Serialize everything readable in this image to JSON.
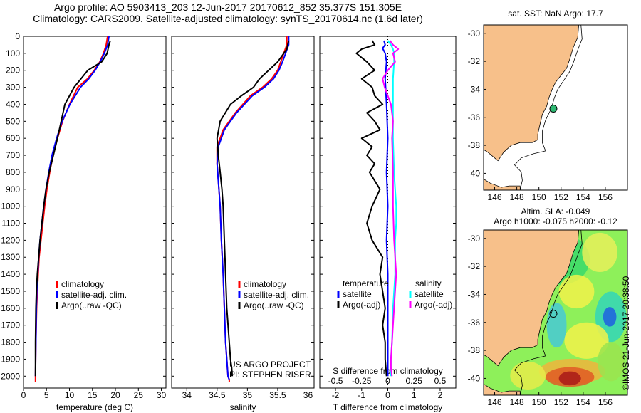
{
  "header": {
    "line1": "Argo profile: AO 5903413_203 12-Jun-2017 20170612_852 35.377S 151.305E",
    "line2": "Climatology: CARS2009. Satellite-adjusted climatology: synTS_20170614.nc (1.6d later)"
  },
  "colors": {
    "climatology": "#ff0000",
    "satellite": "#0000ff",
    "argo": "#000000",
    "satellite_salinity": "#00ffff",
    "argo_salinity": "#ff00ff",
    "land": "#f7c08a",
    "ocean": "#ffffff"
  },
  "chart_data": [
    {
      "type": "line",
      "panel": "temperature",
      "xlabel": "temperature (deg C)",
      "ylabel": "",
      "xlim": [
        0,
        31
      ],
      "ylim": [
        2070,
        0
      ],
      "xticks": [
        "0",
        "5",
        "10",
        "15",
        "20",
        "25",
        "30"
      ],
      "xtick_values": [
        0,
        5,
        10,
        15,
        20,
        25,
        30
      ],
      "yticks": [
        "0",
        "100",
        "200",
        "300",
        "400",
        "500",
        "600",
        "700",
        "800",
        "900",
        "1000",
        "1100",
        "1200",
        "1300",
        "1400",
        "1500",
        "1600",
        "1700",
        "1800",
        "1900",
        "2000"
      ],
      "ytick_values": [
        0,
        100,
        200,
        300,
        400,
        500,
        600,
        700,
        800,
        900,
        1000,
        1100,
        1200,
        1300,
        1400,
        1500,
        1600,
        1700,
        1800,
        1900,
        2000
      ],
      "legend": [
        "climatology",
        "satellite-adj. clim.",
        "Argo(..raw -QC)"
      ],
      "series": [
        {
          "name": "climatology",
          "color_key": "climatology",
          "width": 2,
          "x": [
            18.3,
            18.0,
            17.4,
            16.6,
            15.4,
            13.9,
            11.8,
            10.0,
            8.5,
            7.4,
            6.4,
            5.7,
            5.1,
            4.6,
            4.2,
            3.8,
            3.4,
            3.2,
            3.0,
            2.85,
            2.7,
            2.6,
            2.6
          ],
          "y": [
            0,
            50,
            100,
            150,
            200,
            250,
            300,
            400,
            500,
            600,
            700,
            800,
            900,
            1000,
            1100,
            1200,
            1300,
            1400,
            1500,
            1600,
            1800,
            2000,
            2035
          ]
        },
        {
          "name": "satellite-adj. clim.",
          "color_key": "satellite",
          "width": 2,
          "x": [
            18.6,
            18.3,
            17.6,
            16.7,
            15.6,
            14.2,
            12.4,
            10.1,
            8.4,
            7.2,
            6.2,
            5.5,
            4.9,
            4.4,
            4.0,
            3.6,
            3.3,
            3.1,
            2.9,
            2.8,
            2.7,
            2.6
          ],
          "y": [
            0,
            50,
            100,
            150,
            200,
            250,
            300,
            400,
            500,
            600,
            700,
            800,
            900,
            1000,
            1100,
            1200,
            1300,
            1400,
            1500,
            1600,
            1800,
            2000
          ]
        },
        {
          "name": "Argo(..raw -QC)",
          "color_key": "argo",
          "width": 2,
          "x": [
            18.9,
            18.6,
            18.2,
            17.0,
            14.0,
            12.5,
            11.0,
            9.0,
            8.2,
            7.4,
            6.5,
            5.6,
            4.9,
            4.4,
            4.0,
            3.6,
            3.3,
            3.0,
            2.8,
            2.7,
            2.6,
            2.6
          ],
          "y": [
            25,
            50,
            100,
            150,
            200,
            250,
            300,
            400,
            500,
            600,
            700,
            800,
            900,
            1000,
            1100,
            1200,
            1300,
            1400,
            1500,
            1600,
            1800,
            2000
          ]
        }
      ]
    },
    {
      "type": "line",
      "panel": "salinity",
      "xlabel": "salinity",
      "xlim": [
        33.75,
        36.1
      ],
      "ylim": [
        2070,
        0
      ],
      "xticks": [
        "34",
        "34.5",
        "35",
        "35.5",
        "36"
      ],
      "xtick_values": [
        34,
        34.5,
        35,
        35.5,
        36
      ],
      "legend": [
        "climatology",
        "satellite-adj. clim.",
        "Argo(..raw -QC)"
      ],
      "annotation": [
        "US ARGO PROJECT",
        "PI: STEPHEN RISER"
      ],
      "series": [
        {
          "name": "climatology",
          "color_key": "climatology",
          "width": 2,
          "x": [
            35.65,
            35.65,
            35.6,
            35.55,
            35.5,
            35.4,
            35.25,
            35.05,
            34.8,
            34.6,
            34.5,
            34.5,
            34.52,
            34.55,
            34.57,
            34.6,
            34.62,
            34.64,
            34.66,
            34.68,
            34.7,
            34.7
          ],
          "y": [
            0,
            50,
            100,
            150,
            200,
            250,
            300,
            350,
            450,
            550,
            650,
            750,
            850,
            1000,
            1200,
            1400,
            1600,
            1800,
            1900,
            2000,
            2020,
            2035
          ]
        },
        {
          "name": "satellite-adj. clim.",
          "color_key": "satellite",
          "width": 2,
          "x": [
            35.68,
            35.68,
            35.63,
            35.58,
            35.52,
            35.43,
            35.28,
            35.08,
            34.82,
            34.62,
            34.52,
            34.5,
            34.52,
            34.55,
            34.57,
            34.6,
            34.62,
            34.64,
            34.66,
            34.68,
            34.7
          ],
          "y": [
            0,
            50,
            100,
            150,
            200,
            250,
            300,
            350,
            450,
            550,
            650,
            750,
            850,
            1000,
            1200,
            1400,
            1600,
            1800,
            1900,
            2000,
            2020
          ]
        },
        {
          "name": "Argo(..raw -QC)",
          "color_key": "argo",
          "width": 2,
          "x": [
            35.68,
            35.65,
            35.5,
            35.35,
            35.2,
            35.1,
            34.9,
            34.72,
            34.55,
            34.5,
            34.52,
            34.55,
            34.58,
            34.6,
            34.62,
            34.64,
            34.66,
            34.7,
            34.72,
            34.74,
            34.75
          ],
          "y": [
            25,
            75,
            150,
            200,
            250,
            300,
            350,
            400,
            500,
            600,
            700,
            800,
            900,
            1000,
            1200,
            1400,
            1600,
            1800,
            1900,
            1950,
            2000
          ]
        }
      ]
    },
    {
      "type": "line",
      "panel": "difference",
      "xlabel": "T difference from climatology",
      "xlabel_top": "S difference from climatology",
      "xlim": [
        -2.6,
        2.6
      ],
      "ylim": [
        2070,
        0
      ],
      "xticks": [
        "-2",
        "-1",
        "0",
        "1",
        "2"
      ],
      "xtick_values": [
        -2,
        -1,
        0,
        1,
        2
      ],
      "sticks": [
        "-0.5",
        "-0.25",
        "0",
        "0.25",
        "0.5"
      ],
      "stick_values": [
        -0.5,
        -0.25,
        0,
        0.25,
        0.5
      ],
      "s_scale": 4,
      "legend": [
        {
          "heading": "temperature",
          "items": [
            "satellite",
            "Argo(-adj)"
          ]
        },
        {
          "heading": "salinity",
          "items": [
            "satellite",
            "Argo(-adj)"
          ]
        }
      ],
      "series": [
        {
          "name": "satellite",
          "quantity": "temperature",
          "color_key": "satellite",
          "width": 2,
          "x": [
            -0.15,
            -0.1,
            -0.2,
            -0.1,
            -0.05,
            -0.1,
            -0.05,
            0.0,
            -0.05,
            0.0,
            -0.05,
            0.0,
            0.0,
            0.0,
            0.0,
            0.0,
            0.0
          ],
          "y": [
            25,
            50,
            70,
            100,
            150,
            250,
            400,
            600,
            800,
            1000,
            1200,
            1400,
            1600,
            1700,
            1800,
            1900,
            2000
          ]
        },
        {
          "name": "Argo(-adj)",
          "quantity": "temperature",
          "color_key": "argo",
          "width": 2,
          "x": [
            -0.6,
            -0.5,
            -1.0,
            -1.2,
            -0.8,
            -0.5,
            -1.0,
            -0.6,
            -0.5,
            -0.2,
            -0.8,
            -0.5,
            -0.3,
            -1.0,
            -0.6,
            -0.8,
            -0.5,
            -0.7,
            -0.3,
            -0.6,
            -0.8,
            -0.6,
            -0.2,
            -0.3,
            -0.2,
            -0.1,
            -0.2,
            -0.1,
            -0.1,
            -0.05
          ],
          "y": [
            25,
            50,
            75,
            100,
            150,
            200,
            250,
            300,
            350,
            400,
            450,
            500,
            550,
            600,
            650,
            700,
            750,
            800,
            900,
            1000,
            1100,
            1200,
            1300,
            1400,
            1500,
            1600,
            1700,
            1800,
            1900,
            2000
          ]
        },
        {
          "name": "satellite",
          "quantity": "salinity",
          "color_key": "satellite_salinity",
          "width": 2,
          "x": [
            0.0,
            0.03,
            0.05,
            0.06,
            0.06,
            0.05,
            0.05,
            0.05,
            0.06,
            0.07,
            0.08,
            0.08,
            0.07,
            0.07,
            0.07,
            0.06,
            0.05,
            0.04,
            0.03,
            0.03
          ],
          "y": [
            25,
            50,
            75,
            100,
            150,
            250,
            400,
            600,
            800,
            900,
            1000,
            1100,
            1200,
            1300,
            1400,
            1500,
            1600,
            1800,
            1900,
            2000
          ]
        },
        {
          "name": "Argo(-adj)",
          "quantity": "salinity",
          "color_key": "argo_salinity",
          "width": 2,
          "x": [
            0.02,
            0.05,
            0.1,
            0.05,
            0.07,
            0.0,
            -0.05,
            -0.03,
            0.0,
            0.03,
            0.05,
            0.04,
            0.05,
            0.05,
            0.06,
            0.07,
            0.08,
            0.07,
            0.06,
            0.05,
            0.04,
            0.03,
            0.03,
            0.04
          ],
          "y": [
            25,
            50,
            75,
            100,
            150,
            200,
            250,
            300,
            350,
            400,
            500,
            600,
            800,
            1000,
            1200,
            1300,
            1400,
            1500,
            1600,
            1700,
            1800,
            1900,
            1950,
            2000
          ]
        }
      ]
    },
    {
      "type": "map",
      "panel": "sst_map",
      "title": "sat. SST: NaN  Argo: 17.7",
      "xlim": [
        145,
        158
      ],
      "ylim": [
        -41.2,
        -29.4
      ],
      "xticks": [
        "146",
        "148",
        "150",
        "152",
        "154",
        "156"
      ],
      "xtick_values": [
        146,
        148,
        150,
        152,
        154,
        156
      ],
      "yticks": [
        "-30",
        "-32",
        "-34",
        "-36",
        "-38",
        "-40"
      ],
      "ytick_values": [
        -30,
        -32,
        -34,
        -36,
        -38,
        -40
      ],
      "float_position": {
        "lon": 151.305,
        "lat": -35.377
      }
    },
    {
      "type": "map",
      "panel": "sla_map",
      "title": [
        "Altim. SLA: -0.049",
        "Argo h1000: -0.075  h2000: -0.12"
      ],
      "xlim": [
        145,
        158
      ],
      "ylim": [
        -41.2,
        -29.4
      ],
      "xticks": [
        "146",
        "148",
        "150",
        "152",
        "154",
        "156"
      ],
      "xtick_values": [
        146,
        148,
        150,
        152,
        154,
        156
      ],
      "yticks": [
        "-30",
        "-32",
        "-34",
        "-36",
        "-38",
        "-40"
      ],
      "ytick_values": [
        -30,
        -32,
        -34,
        -36,
        -38,
        -40
      ],
      "float_position": {
        "lon": 151.305,
        "lat": -35.377
      }
    }
  ],
  "footer": {
    "stamp": "©IMOS 21-Jun-2017 20:38:50"
  }
}
